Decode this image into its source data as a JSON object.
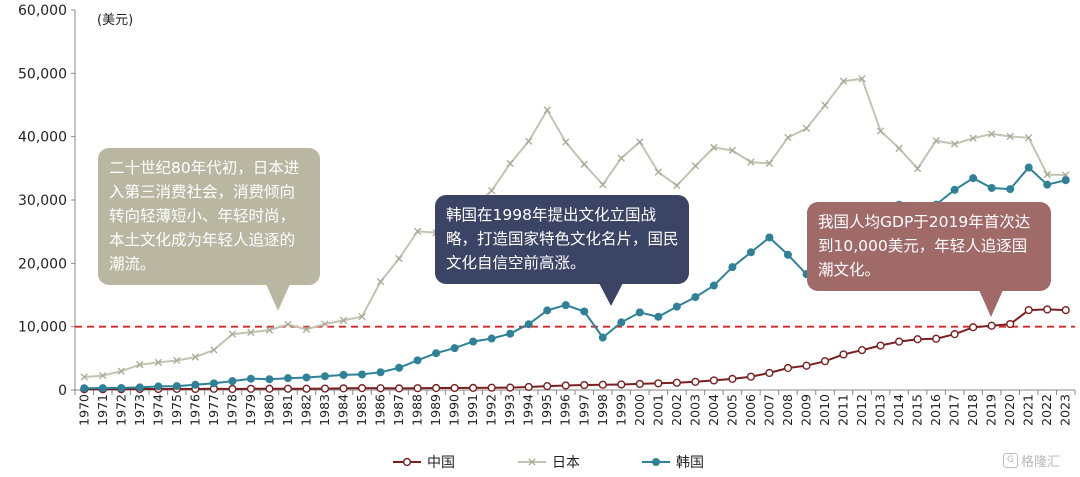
{
  "chart_data": {
    "type": "line",
    "unit_label": "(美元)",
    "x": [
      1970,
      1971,
      1972,
      1973,
      1974,
      1975,
      1976,
      1977,
      1978,
      1979,
      1980,
      1981,
      1982,
      1983,
      1984,
      1985,
      1986,
      1987,
      1988,
      1989,
      1990,
      1991,
      1992,
      1993,
      1994,
      1995,
      1996,
      1997,
      1998,
      1999,
      2000,
      2001,
      2002,
      2003,
      2004,
      2005,
      2006,
      2007,
      2008,
      2009,
      2010,
      2011,
      2012,
      2013,
      2014,
      2015,
      2016,
      2017,
      2018,
      2019,
      2020,
      2021,
      2022,
      2023
    ],
    "ylim": [
      0,
      60000
    ],
    "yticks": [
      0,
      10000,
      20000,
      30000,
      40000,
      50000,
      60000
    ],
    "ytick_labels": [
      "0",
      "10,000",
      "20,000",
      "30,000",
      "40,000",
      "50,000",
      "60,000"
    ],
    "reference_line": {
      "value": 10000,
      "color": "#d62728",
      "style": "dashed"
    },
    "series": [
      {
        "name": "中国",
        "color": "#7a1f1f",
        "marker": "open-circle",
        "values": [
          113,
          118,
          131,
          157,
          160,
          178,
          165,
          185,
          156,
          184,
          195,
          197,
          203,
          225,
          251,
          294,
          281,
          252,
          284,
          311,
          318,
          333,
          366,
          377,
          473,
          610,
          709,
          782,
          829,
          873,
          959,
          1053,
          1149,
          1289,
          1509,
          1753,
          2099,
          2694,
          3468,
          3832,
          4550,
          5614,
          6301,
          7020,
          7636,
          8016,
          8094,
          8817,
          9905,
          10144,
          10409,
          12618,
          12720,
          12614
        ]
      },
      {
        "name": "日本",
        "color": "#c4c3b3",
        "marker": "x",
        "values": [
          2056,
          2272,
          2967,
          3997,
          4354,
          4659,
          5197,
          6335,
          8821,
          9105,
          9463,
          10361,
          9578,
          10425,
          10984,
          11585,
          17113,
          20745,
          25052,
          24823,
          25371,
          28925,
          31465,
          35766,
          39269,
          44198,
          39150,
          35635,
          32423,
          36610,
          39169,
          34406,
          32289,
          35387,
          38299,
          37813,
          35991,
          35779,
          39876,
          41309,
          44968,
          48760,
          49145,
          40898,
          38156,
          34960,
          39375,
          38834,
          39751,
          40416,
          40041,
          39827,
          34017,
          33950
        ]
      },
      {
        "name": "韩国",
        "color": "#2e8196",
        "marker": "filled-circle",
        "values": [
          279,
          301,
          324,
          406,
          563,
          615,
          830,
          1052,
          1400,
          1784,
          1704,
          1870,
          1978,
          2180,
          2390,
          2457,
          2803,
          3510,
          4686,
          5810,
          6610,
          7637,
          8127,
          8885,
          10385,
          12565,
          13403,
          12398,
          8282,
          10673,
          12257,
          11561,
          13165,
          14673,
          16496,
          19402,
          21743,
          24086,
          21350,
          18291,
          22087,
          24080,
          24359,
          25890,
          29250,
          28724,
          29274,
          31601,
          33447,
          31902,
          31721,
          35126,
          32423,
          33121
        ]
      }
    ]
  },
  "legend": [
    {
      "label": "中国",
      "color": "#7a1f1f",
      "marker": "open-circle"
    },
    {
      "label": "日本",
      "color": "#c4c3b3",
      "marker": "x"
    },
    {
      "label": "韩国",
      "color": "#2e8196",
      "marker": "filled-circle"
    }
  ],
  "callouts": {
    "japan": {
      "text": "二十世纪80年代初，日本进入第三消费社会，消费倾向转向轻薄短小、年轻时尚，本土文化成为年轻人追逐的潮流。",
      "color": "#b9b7a2"
    },
    "korea": {
      "text": "韩国在1998年提出文化立国战略，打造国家特色文化名片，国民文化自信空前高涨。",
      "color": "#3c4466"
    },
    "china": {
      "text": "我国人均GDP于2019年首次达到10,000美元，年轻人追逐国潮文化。",
      "color": "#a06a69"
    }
  },
  "watermark": {
    "icon": "brand-logo-icon",
    "text": "格隆汇"
  }
}
